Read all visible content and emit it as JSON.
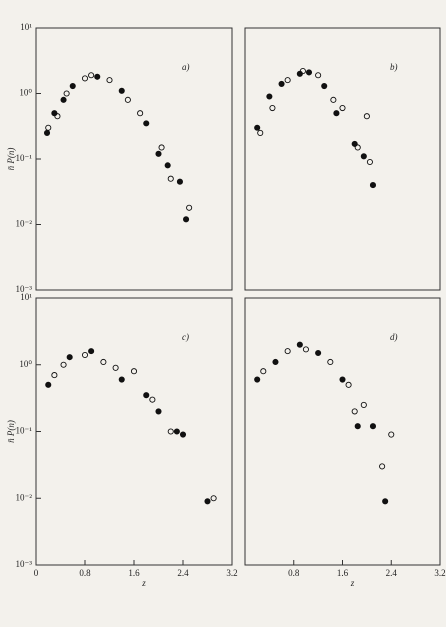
{
  "chart_data": [
    {
      "type": "scatter",
      "label": "a)",
      "ylabel": "n̄ P(n)",
      "log_y": true,
      "xlim": [
        0,
        3.2
      ],
      "ylim": [
        0.001,
        10
      ],
      "yticks": [
        {
          "value": 10,
          "label": "10¹"
        },
        {
          "value": 1,
          "label": "10⁰"
        },
        {
          "value": 0.1,
          "label": "10⁻¹"
        },
        {
          "value": 0.01,
          "label": "10⁻²"
        },
        {
          "value": 0.001,
          "label": "10⁻³"
        }
      ],
      "series": [
        {
          "marker": "filled",
          "color": "#111111",
          "x": [
            0.18,
            0.3,
            0.45,
            0.6,
            1.0,
            1.4,
            1.8,
            2.0,
            2.15,
            2.35,
            2.45
          ],
          "values": [
            0.25,
            0.5,
            0.8,
            1.3,
            1.8,
            1.1,
            0.35,
            0.12,
            0.08,
            0.045,
            0.012
          ]
        },
        {
          "marker": "open",
          "color": "#111111",
          "x": [
            0.2,
            0.35,
            0.5,
            0.8,
            0.9,
            1.2,
            1.5,
            1.7,
            2.05,
            2.2,
            2.5
          ],
          "values": [
            0.3,
            0.45,
            1.0,
            1.7,
            1.9,
            1.6,
            0.8,
            0.5,
            0.15,
            0.05,
            0.018
          ]
        }
      ]
    },
    {
      "type": "scatter",
      "label": "b)",
      "log_y": true,
      "xlim": [
        0,
        3.2
      ],
      "ylim": [
        0.001,
        10
      ],
      "series": [
        {
          "marker": "filled",
          "color": "#111111",
          "x": [
            0.2,
            0.4,
            0.6,
            0.9,
            1.05,
            1.3,
            1.5,
            1.8,
            1.95,
            2.1
          ],
          "values": [
            0.3,
            0.9,
            1.4,
            2.0,
            2.1,
            1.3,
            0.5,
            0.17,
            0.11,
            0.04
          ]
        },
        {
          "marker": "open",
          "color": "#111111",
          "x": [
            0.25,
            0.45,
            0.7,
            0.95,
            1.2,
            1.45,
            1.6,
            1.85,
            2.0,
            2.05
          ],
          "values": [
            0.25,
            0.6,
            1.6,
            2.2,
            1.9,
            0.8,
            0.6,
            0.15,
            0.45,
            0.09
          ]
        }
      ]
    },
    {
      "type": "scatter",
      "label": "c)",
      "ylabel": "n̄ P(n)",
      "xlabel": "z",
      "log_y": true,
      "xlim": [
        0,
        3.2
      ],
      "ylim": [
        0.001,
        10
      ],
      "xticks": [
        0,
        0.8,
        1.6,
        2.4,
        3.2
      ],
      "yticks": [
        {
          "value": 10,
          "label": "10¹"
        },
        {
          "value": 1,
          "label": "10⁰"
        },
        {
          "value": 0.1,
          "label": "10⁻¹"
        },
        {
          "value": 0.01,
          "label": "10⁻²"
        },
        {
          "value": 0.001,
          "label": "10⁻³"
        }
      ],
      "series": [
        {
          "marker": "filled",
          "color": "#111111",
          "x": [
            0.2,
            0.55,
            0.9,
            1.4,
            1.8,
            2.0,
            2.3,
            2.4,
            2.8
          ],
          "values": [
            0.5,
            1.3,
            1.6,
            0.6,
            0.35,
            0.2,
            0.1,
            0.09,
            0.009
          ]
        },
        {
          "marker": "open",
          "color": "#111111",
          "x": [
            0.3,
            0.45,
            0.8,
            1.1,
            1.3,
            1.6,
            1.9,
            2.2,
            2.9
          ],
          "values": [
            0.7,
            1.0,
            1.4,
            1.1,
            0.9,
            0.8,
            0.3,
            0.1,
            0.01
          ]
        }
      ]
    },
    {
      "type": "scatter",
      "label": "d)",
      "xlabel": "z",
      "log_y": true,
      "xlim": [
        0,
        3.2
      ],
      "ylim": [
        0.001,
        10
      ],
      "xticks": [
        0.8,
        1.6,
        2.4,
        3.2
      ],
      "series": [
        {
          "marker": "filled",
          "color": "#111111",
          "x": [
            0.2,
            0.5,
            0.9,
            1.2,
            1.6,
            1.85,
            2.1,
            2.3
          ],
          "values": [
            0.6,
            1.1,
            2.0,
            1.5,
            0.6,
            0.12,
            0.12,
            0.009
          ]
        },
        {
          "marker": "open",
          "color": "#111111",
          "x": [
            0.3,
            0.7,
            1.0,
            1.4,
            1.7,
            1.8,
            1.95,
            2.25,
            2.4
          ],
          "values": [
            0.8,
            1.6,
            1.7,
            1.1,
            0.5,
            0.2,
            0.25,
            0.03,
            0.09
          ]
        }
      ]
    }
  ]
}
